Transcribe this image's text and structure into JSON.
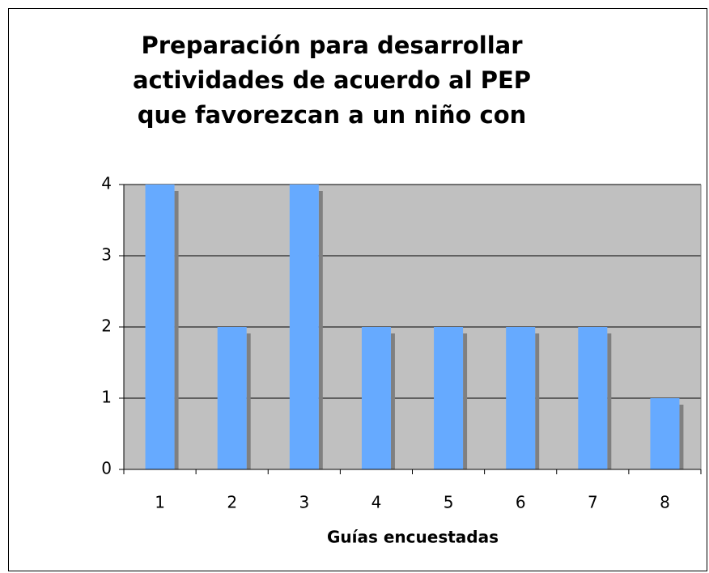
{
  "chart_data": {
    "type": "bar",
    "title": [
      "Preparación para desarrollar",
      "actividades de acuerdo al PEP",
      "que favorezcan a un niño con"
    ],
    "x_label": "Guías encuestadas",
    "categories": [
      "1",
      "2",
      "3",
      "4",
      "5",
      "6",
      "7",
      "8"
    ],
    "values": [
      4,
      2,
      4,
      2,
      2,
      2,
      2,
      1
    ],
    "color": "#66aaff",
    "ylim": [
      0,
      4
    ],
    "yticks": [
      0,
      1,
      2,
      3,
      4
    ],
    "grid": true
  }
}
